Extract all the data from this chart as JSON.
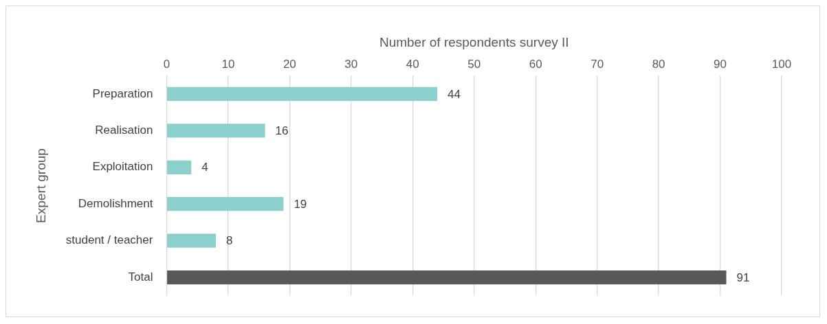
{
  "chart_data": {
    "type": "bar",
    "orientation": "horizontal",
    "xlabel": "Number of respondents survey II",
    "ylabel": "Expert group",
    "categories": [
      "Preparation",
      "Realisation",
      "Exploitation",
      "Demolishment",
      "student / teacher",
      "Total"
    ],
    "values": [
      44,
      16,
      4,
      19,
      8,
      91
    ],
    "colors": [
      "#8bd0cd",
      "#8bd0cd",
      "#8bd0cd",
      "#8bd0cd",
      "#8bd0cd",
      "#595959"
    ],
    "xlim": [
      0,
      100
    ],
    "xticks": [
      0,
      10,
      20,
      30,
      40,
      50,
      60,
      70,
      80,
      90,
      100
    ],
    "grid": "x",
    "data_labels": true,
    "legend": false
  }
}
